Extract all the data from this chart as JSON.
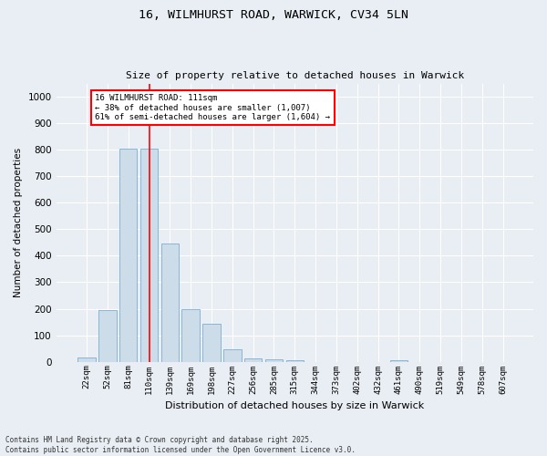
{
  "title_line1": "16, WILMHURST ROAD, WARWICK, CV34 5LN",
  "title_line2": "Size of property relative to detached houses in Warwick",
  "xlabel": "Distribution of detached houses by size in Warwick",
  "ylabel": "Number of detached properties",
  "footer_line1": "Contains HM Land Registry data © Crown copyright and database right 2025.",
  "footer_line2": "Contains public sector information licensed under the Open Government Licence v3.0.",
  "categories": [
    "22sqm",
    "52sqm",
    "81sqm",
    "110sqm",
    "139sqm",
    "169sqm",
    "198sqm",
    "227sqm",
    "256sqm",
    "285sqm",
    "315sqm",
    "344sqm",
    "373sqm",
    "402sqm",
    "432sqm",
    "461sqm",
    "490sqm",
    "519sqm",
    "549sqm",
    "578sqm",
    "607sqm"
  ],
  "values": [
    17,
    195,
    805,
    805,
    445,
    198,
    143,
    48,
    13,
    10,
    7,
    0,
    0,
    0,
    0,
    7,
    0,
    0,
    0,
    0,
    0
  ],
  "bar_color": "#ccdce8",
  "bar_edge_color": "#7bafd4",
  "highlight_idx": 3,
  "highlight_color": "red",
  "annotation_title": "16 WILMHURST ROAD: 111sqm",
  "annotation_line1": "← 38% of detached houses are smaller (1,007)",
  "annotation_line2": "61% of semi-detached houses are larger (1,604) →",
  "annotation_box_color": "red",
  "annotation_bg": "white",
  "ylim": [
    0,
    1050
  ],
  "yticks": [
    0,
    100,
    200,
    300,
    400,
    500,
    600,
    700,
    800,
    900,
    1000
  ],
  "background_color": "#e8eef4",
  "grid_color": "white",
  "figsize": [
    6.0,
    5.0
  ],
  "dpi": 100
}
